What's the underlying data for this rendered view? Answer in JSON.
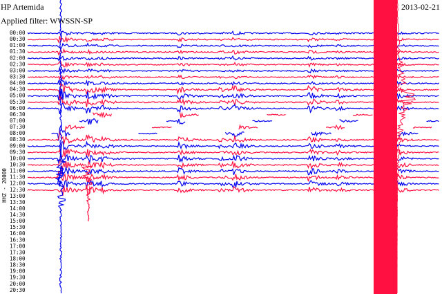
{
  "header": {
    "station": "HP Artemida",
    "filter": "Applied filter: WWSSN-SP",
    "date": "2013-02-21"
  },
  "channel_label": "HHZ - 20000",
  "time_labels": [
    "00:00",
    "00:30",
    "01:00",
    "01:30",
    "02:00",
    "02:30",
    "03:00",
    "03:30",
    "04:00",
    "04:30",
    "05:00",
    "05:30",
    "06:00",
    "06:30",
    "07:00",
    "07:30",
    "08:00",
    "08:30",
    "09:00",
    "09:30",
    "10:00",
    "10:30",
    "11:00",
    "11:30",
    "12:00",
    "12:30",
    "13:00",
    "13:30",
    "14:00",
    "14:30",
    "15:00",
    "15:30",
    "16:00",
    "16:30",
    "17:00",
    "17:30",
    "18:00",
    "18:30",
    "19:00",
    "19:30",
    "20:00",
    "20:30"
  ]
}
